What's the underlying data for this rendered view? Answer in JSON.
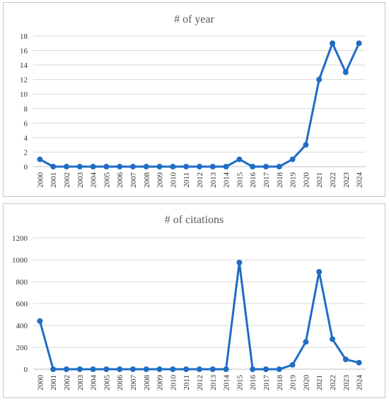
{
  "chart_data": [
    {
      "type": "line",
      "title": "# of year",
      "xlabel": "",
      "ylabel": "",
      "ylim": [
        0,
        18
      ],
      "yticks": [
        "0",
        "2",
        "4",
        "6",
        "8",
        "10",
        "12",
        "14",
        "16",
        "18"
      ],
      "x": [
        "2000",
        "2001",
        "2002",
        "2003",
        "2004",
        "2005",
        "2006",
        "2007",
        "2008",
        "2009",
        "2010",
        "2011",
        "2012",
        "2013",
        "2014",
        "2015",
        "2016",
        "2017",
        "2018",
        "2019",
        "2020",
        "2021",
        "2022",
        "2023",
        "2024"
      ],
      "series": [
        {
          "values": [
            1,
            0,
            0,
            0,
            0,
            0,
            0,
            0,
            0,
            0,
            0,
            0,
            0,
            0,
            0,
            1,
            0,
            0,
            0,
            1,
            3,
            12,
            17,
            13,
            17
          ]
        }
      ],
      "grid": true,
      "legend": "none",
      "color": "#1f6dc4"
    },
    {
      "type": "line",
      "title": "# of citations",
      "xlabel": "",
      "ylabel": "",
      "ylim": [
        0,
        1200
      ],
      "yticks": [
        "0",
        "200",
        "400",
        "600",
        "800",
        "1000",
        "1200"
      ],
      "x": [
        "2000",
        "2001",
        "2002",
        "2003",
        "2004",
        "2005",
        "2006",
        "2007",
        "2008",
        "2009",
        "2010",
        "2011",
        "2012",
        "2013",
        "2014",
        "2015",
        "2016",
        "2017",
        "2018",
        "2019",
        "2020",
        "2021",
        "2022",
        "2023",
        "2024"
      ],
      "series": [
        {
          "values": [
            440,
            0,
            0,
            0,
            0,
            0,
            0,
            0,
            0,
            0,
            0,
            0,
            0,
            0,
            0,
            975,
            0,
            0,
            0,
            40,
            250,
            890,
            275,
            90,
            60
          ]
        }
      ],
      "grid": true,
      "legend": "none",
      "color": "#1f6dc4"
    }
  ]
}
